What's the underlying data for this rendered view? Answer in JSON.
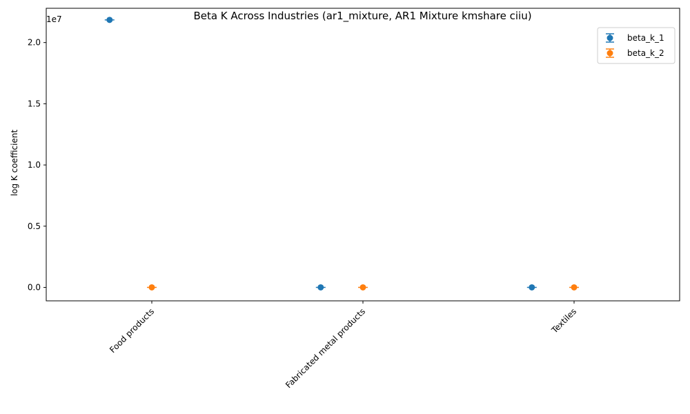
{
  "chart_data": {
    "type": "scatter",
    "title": "Beta K Across Industries (ar1_mixture, AR1 Mixture kmshare ciiu)",
    "xlabel": "",
    "ylabel": "log K coefficient",
    "offset_label": "1e7",
    "categories": [
      "Food products",
      "Fabricated metal products",
      "Textiles"
    ],
    "ylim": [
      -1100000,
      22800000
    ],
    "yticks": [
      0,
      5000000,
      10000000,
      15000000,
      20000000
    ],
    "ytick_labels": [
      "0.0",
      "0.5",
      "1.0",
      "1.5",
      "2.0"
    ],
    "series": [
      {
        "name": "beta_k_1",
        "color": "#1f77b4",
        "offset": -0.2,
        "values": [
          21850000,
          0,
          0
        ]
      },
      {
        "name": "beta_k_2",
        "color": "#ff7f0e",
        "offset": 0.0,
        "values": [
          0,
          0,
          0
        ]
      }
    ],
    "legend": "top-right",
    "grid": false,
    "error_bars": true
  }
}
